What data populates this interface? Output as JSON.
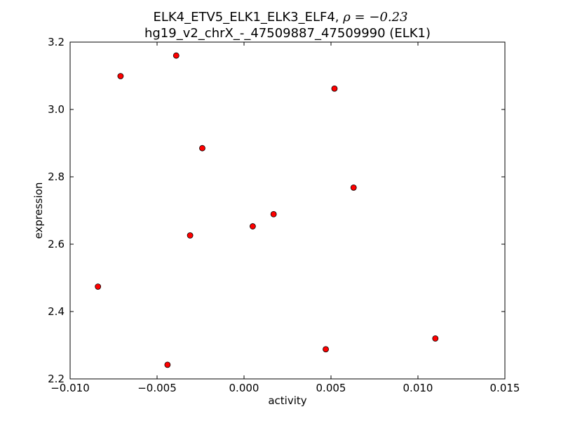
{
  "chart_data": {
    "type": "scatter",
    "title_line1": "ELK4_ETV5_ELK1_ELK3_ELF4,",
    "title_rho": "ρ = −0.23",
    "title_line2": "hg19_v2_chrX_-_47509887_47509990 (ELK1)",
    "xlabel": "activity",
    "ylabel": "expression",
    "xlim": [
      -0.01,
      0.015
    ],
    "ylim": [
      2.2,
      3.2
    ],
    "x_ticks": [
      -0.01,
      -0.005,
      0.0,
      0.005,
      0.01,
      0.015
    ],
    "x_tick_labels": [
      "−0.010",
      "−0.005",
      "0.000",
      "0.005",
      "0.010",
      "0.015"
    ],
    "y_ticks": [
      2.2,
      2.4,
      2.6,
      2.8,
      3.0,
      3.2
    ],
    "y_tick_labels": [
      "2.2",
      "2.4",
      "2.6",
      "2.8",
      "3.0",
      "3.2"
    ],
    "grid": false,
    "marker_color": "#ff0000",
    "marker_edge": "#000000",
    "points": [
      {
        "x": -0.0084,
        "y": 2.474
      },
      {
        "x": -0.0071,
        "y": 3.099
      },
      {
        "x": -0.0044,
        "y": 2.242
      },
      {
        "x": -0.0039,
        "y": 3.16
      },
      {
        "x": -0.0031,
        "y": 2.626
      },
      {
        "x": -0.0024,
        "y": 2.885
      },
      {
        "x": 0.0005,
        "y": 2.653
      },
      {
        "x": 0.0017,
        "y": 2.689
      },
      {
        "x": 0.0047,
        "y": 2.288
      },
      {
        "x": 0.0052,
        "y": 3.062
      },
      {
        "x": 0.0063,
        "y": 2.768
      },
      {
        "x": 0.011,
        "y": 2.32
      }
    ]
  }
}
